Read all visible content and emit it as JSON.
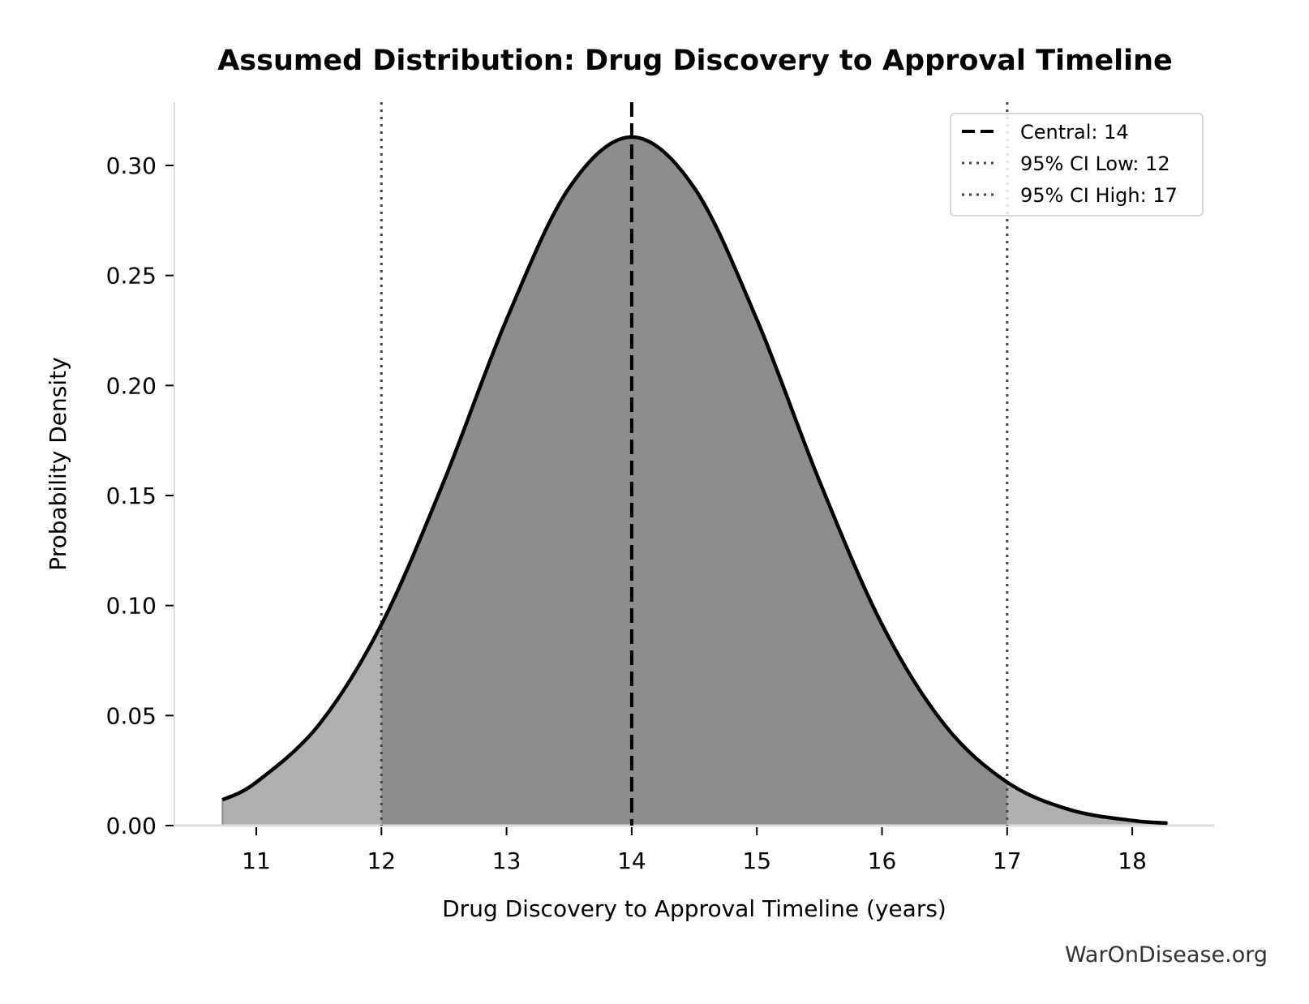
{
  "chart_data": {
    "type": "area",
    "title": "Assumed Distribution: Drug Discovery to Approval Timeline",
    "xlabel": "Drug Discovery to Approval Timeline (years)",
    "ylabel": "Probability Density",
    "xlim": [
      10.35,
      18.65
    ],
    "ylim": [
      0,
      0.329
    ],
    "x_ticks": [
      11,
      12,
      13,
      14,
      15,
      16,
      17,
      18
    ],
    "x_tick_labels": [
      "11",
      "12",
      "13",
      "14",
      "15",
      "16",
      "17",
      "18"
    ],
    "y_ticks": [
      0,
      0.05,
      0.1,
      0.15,
      0.2,
      0.25,
      0.3
    ],
    "y_tick_labels": [
      "0.00",
      "0.05",
      "0.10",
      "0.15",
      "0.20",
      "0.25",
      "0.30"
    ],
    "grid": false,
    "curve": {
      "x": [
        10.73,
        11,
        11.5,
        12,
        12.5,
        13,
        13.5,
        14,
        14.5,
        15,
        15.5,
        16,
        16.5,
        17,
        17.5,
        18,
        18.28
      ],
      "y": [
        0.0117,
        0.0197,
        0.0458,
        0.0914,
        0.1566,
        0.23,
        0.2898,
        0.3129,
        0.2898,
        0.23,
        0.1566,
        0.0914,
        0.0458,
        0.0197,
        0.0072,
        0.0023,
        0.0011
      ]
    },
    "shaded_interval": [
      12,
      17
    ],
    "colors": {
      "curve": "#000000",
      "tail_fill": "#b0b0b0",
      "ci_fill": "#8d8d8d",
      "ci_lines": "#444444"
    },
    "reference_lines": [
      {
        "x": 14,
        "style": "dashed",
        "label": "Central: 14"
      },
      {
        "x": 12,
        "style": "dotted",
        "label": "95% CI Low: 12"
      },
      {
        "x": 17,
        "style": "dotted",
        "label": "95% CI High: 17"
      }
    ],
    "legend_position": "top-right"
  },
  "watermark": "WarOnDisease.org"
}
